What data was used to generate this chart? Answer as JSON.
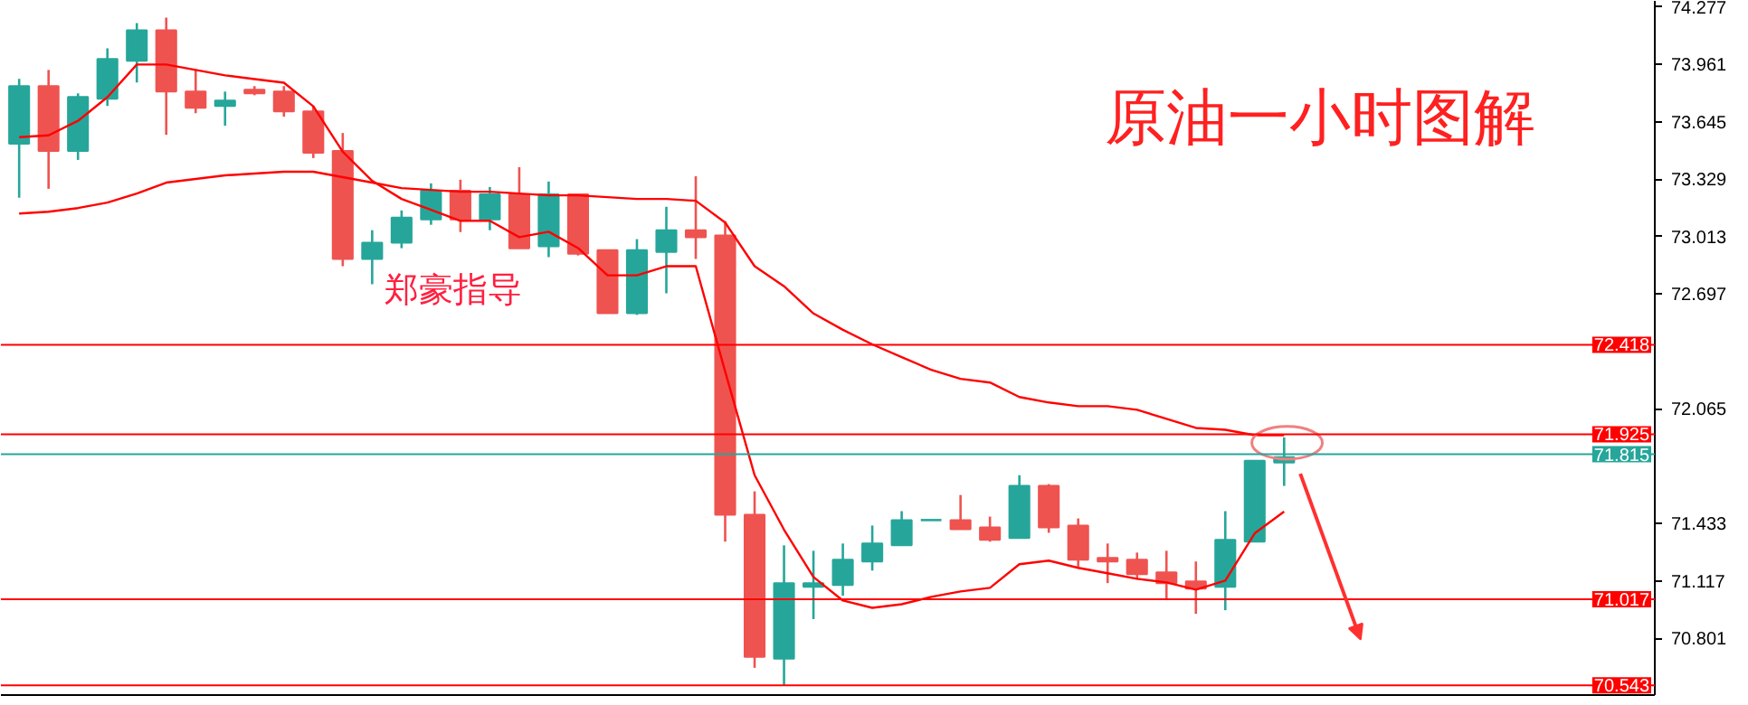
{
  "chart_data": {
    "type": "candlestick",
    "title": "原油一小时图解",
    "annotations": [
      "郑豪指导"
    ],
    "categories": [
      null,
      null,
      null,
      null,
      null,
      null,
      null,
      null,
      null,
      null,
      null,
      null,
      null,
      null,
      null,
      null,
      null,
      null,
      null,
      null,
      null,
      null,
      null,
      null,
      null,
      null,
      null,
      null,
      null,
      null,
      null,
      null,
      null,
      null,
      null,
      null,
      null,
      null,
      null,
      null,
      null,
      null,
      null,
      null
    ],
    "ohlc": [
      [
        73.524,
        73.881,
        73.227,
        73.841
      ],
      [
        73.841,
        73.93,
        73.276,
        73.484
      ],
      [
        73.484,
        73.801,
        73.435,
        73.782
      ],
      [
        73.772,
        74.049,
        73.732,
        73.99
      ],
      [
        73.98,
        74.188,
        73.861,
        74.148
      ],
      [
        74.148,
        74.218,
        73.573,
        73.811
      ],
      [
        73.811,
        73.93,
        73.692,
        73.722
      ],
      [
        73.732,
        73.811,
        73.623,
        73.762
      ],
      [
        73.821,
        73.841,
        73.791,
        73.801
      ],
      [
        73.811,
        73.841,
        73.673,
        73.702
      ],
      [
        73.702,
        73.732,
        73.445,
        73.474
      ],
      [
        73.484,
        73.583,
        72.85,
        72.89
      ],
      [
        72.89,
        73.048,
        72.751,
        72.979
      ],
      [
        72.979,
        73.157,
        72.949,
        73.118
      ],
      [
        73.108,
        73.306,
        73.078,
        73.266
      ],
      [
        73.266,
        73.326,
        73.038,
        73.108
      ],
      [
        73.108,
        73.286,
        73.048,
        73.246
      ],
      [
        73.246,
        73.395,
        72.949,
        72.949
      ],
      [
        72.959,
        73.316,
        72.9,
        73.246
      ],
      [
        73.246,
        73.246,
        72.909,
        72.919
      ],
      [
        72.939,
        72.939,
        72.592,
        72.592
      ],
      [
        72.592,
        72.999,
        72.582,
        72.939
      ],
      [
        72.929,
        73.177,
        72.701,
        73.048
      ],
      [
        73.048,
        73.345,
        72.89,
        73.009
      ],
      [
        73.019,
        73.098,
        71.334,
        71.482
      ],
      [
        71.482,
        71.611,
        70.64,
        70.7
      ],
      [
        70.69,
        71.314,
        70.543,
        71.106
      ],
      [
        71.086,
        71.284,
        70.908,
        71.106
      ],
      [
        71.096,
        71.324,
        71.037,
        71.235
      ],
      [
        71.225,
        71.423,
        71.175,
        71.324
      ],
      [
        71.314,
        71.502,
        71.314,
        71.453
      ],
      [
        71.453,
        71.453,
        71.453,
        71.453
      ],
      [
        71.453,
        71.591,
        71.403,
        71.403
      ],
      [
        71.413,
        71.472,
        71.334,
        71.344
      ],
      [
        71.354,
        71.7,
        71.354,
        71.641
      ],
      [
        71.641,
        71.651,
        71.383,
        71.413
      ],
      [
        71.423,
        71.462,
        71.195,
        71.235
      ],
      [
        71.245,
        71.324,
        71.106,
        71.225
      ],
      [
        71.235,
        71.274,
        71.126,
        71.155
      ],
      [
        71.165,
        71.284,
        71.017,
        71.106
      ],
      [
        71.116,
        71.225,
        70.937,
        71.076
      ],
      [
        71.086,
        71.502,
        70.957,
        71.344
      ],
      [
        71.334,
        71.78,
        71.334,
        71.78
      ],
      [
        71.77,
        71.908,
        71.641,
        71.8
      ]
    ],
    "colors": [
      "#26a69a",
      "#ef5350",
      "#26a69a",
      "#26a69a",
      "#26a69a",
      "#ef5350",
      "#ef5350",
      "#26a69a",
      "#ef5350",
      "#ef5350",
      "#ef5350",
      "#ef5350",
      "#26a69a",
      "#26a69a",
      "#26a69a",
      "#ef5350",
      "#26a69a",
      "#ef5350",
      "#26a69a",
      "#ef5350",
      "#ef5350",
      "#26a69a",
      "#26a69a",
      "#ef5350",
      "#ef5350",
      "#ef5350",
      "#26a69a",
      "#26a69a",
      "#26a69a",
      "#26a69a",
      "#26a69a",
      "#26a69a",
      "#ef5350",
      "#ef5350",
      "#26a69a",
      "#ef5350",
      "#ef5350",
      "#ef5350",
      "#ef5350",
      "#ef5350",
      "#ef5350",
      "#26a69a",
      "#26a69a",
      "#26a69a"
    ],
    "series": [
      {
        "type": "line",
        "color": "#ff0000",
        "values": [
          73.56,
          73.57,
          73.65,
          73.78,
          73.96,
          73.96,
          73.93,
          73.9,
          73.88,
          73.86,
          73.73,
          73.48,
          73.32,
          73.22,
          73.16,
          73.1,
          73.1,
          73.01,
          73.04,
          72.95,
          72.8,
          72.8,
          72.85,
          72.85,
          72.27,
          71.7,
          71.4,
          71.14,
          71.01,
          70.97,
          70.99,
          71.03,
          71.06,
          71.08,
          71.21,
          71.23,
          71.19,
          71.16,
          71.13,
          71.11,
          71.07,
          71.12,
          71.38,
          71.5
        ]
      },
      {
        "type": "line",
        "color": "#ff0000",
        "values": [
          73.14,
          73.15,
          73.17,
          73.2,
          73.25,
          73.31,
          73.33,
          73.35,
          73.36,
          73.37,
          73.37,
          73.34,
          73.31,
          73.28,
          73.27,
          73.26,
          73.26,
          73.25,
          73.24,
          73.24,
          73.23,
          73.22,
          73.22,
          73.21,
          73.09,
          72.85,
          72.74,
          72.59,
          72.5,
          72.42,
          72.35,
          72.28,
          72.23,
          72.21,
          72.13,
          72.1,
          72.08,
          72.08,
          72.06,
          72.01,
          71.96,
          71.95,
          71.92,
          71.92
        ]
      }
    ],
    "ref_lines": [
      {
        "axis": "y",
        "value": 72.418,
        "label": "72.418",
        "color": "#ff0000"
      },
      {
        "axis": "y",
        "value": 71.925,
        "label": "71.925",
        "color": "#ff0000"
      },
      {
        "axis": "y",
        "value": 71.815,
        "label": "71.815",
        "color": "#26a69a"
      },
      {
        "axis": "y",
        "value": 71.017,
        "label": "71.017",
        "color": "#ff0000"
      },
      {
        "axis": "y",
        "value": 70.543,
        "label": "70.543",
        "color": "#ff0000"
      }
    ],
    "ylim": [
      70.49,
      74.31
    ],
    "yticks": [
      74.277,
      73.961,
      73.645,
      73.329,
      73.013,
      72.697,
      72.065,
      71.433,
      71.117,
      70.801
    ],
    "tick_labels": "y",
    "grid": false
  }
}
